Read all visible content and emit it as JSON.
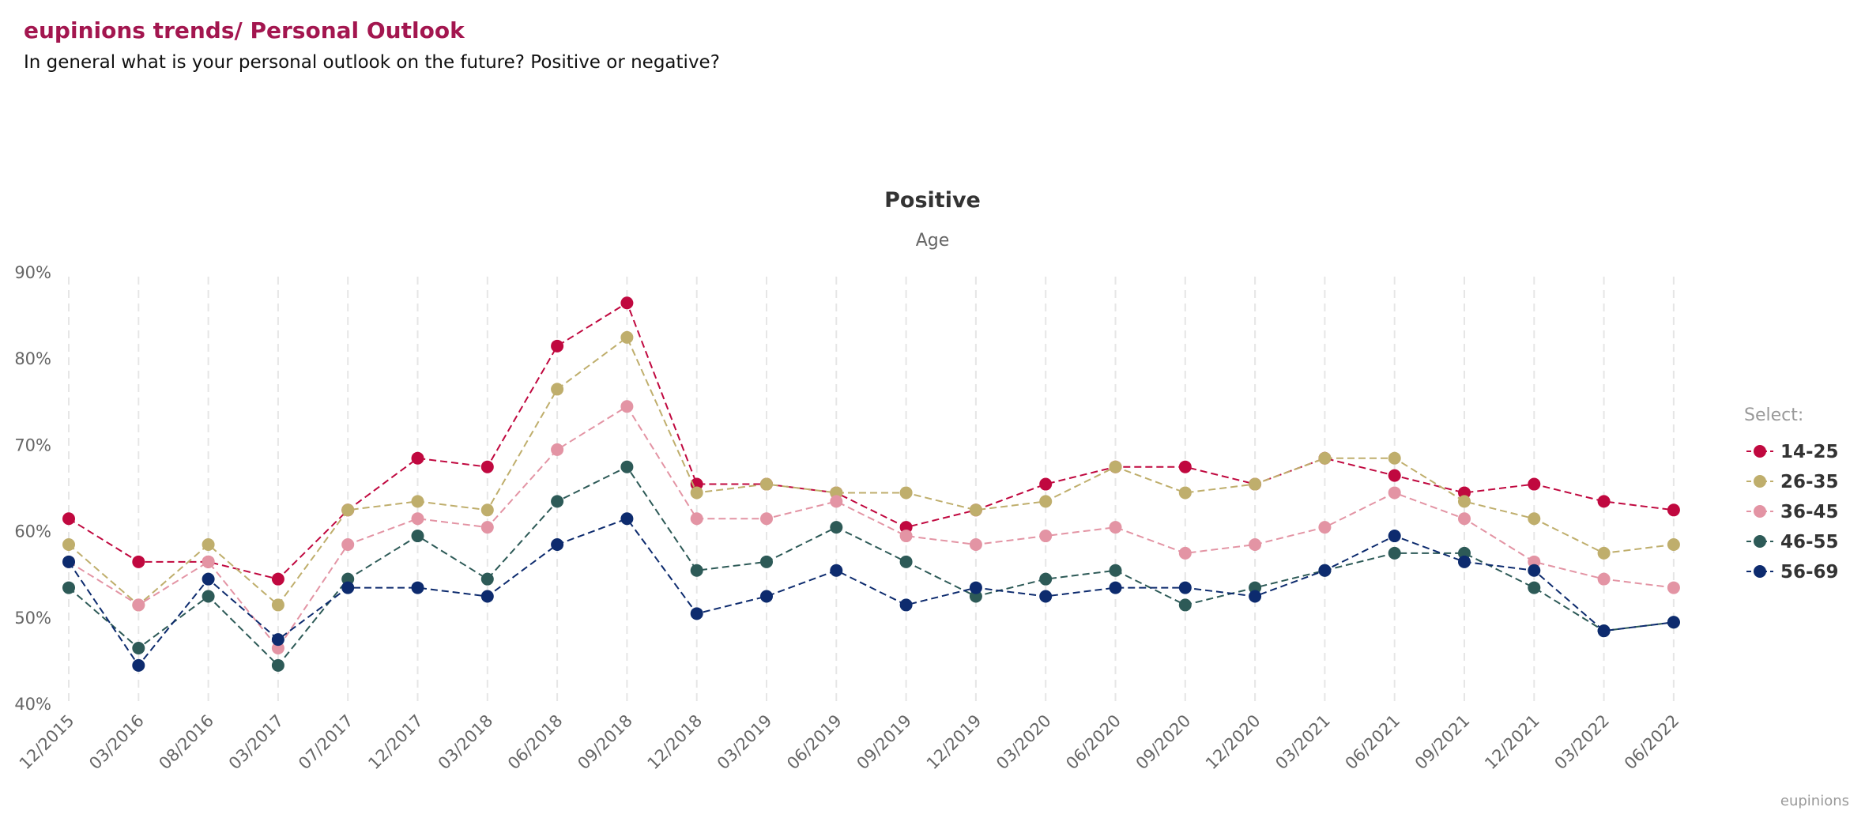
{
  "header": {
    "title": "eupinions trends/ Personal Outlook",
    "subtitle": "In general what is your personal outlook on the future? Positive or negative?"
  },
  "credit": "eupinions",
  "chart_data": {
    "type": "line",
    "title": "Positive",
    "subtitle": "Age",
    "xlabel": "",
    "ylabel": "",
    "ylim": [
      40,
      90
    ],
    "yticks": [
      "40%",
      "50%",
      "60%",
      "70%",
      "80%",
      "90%"
    ],
    "ytick_values": [
      40,
      50,
      60,
      70,
      80,
      90
    ],
    "grid": "vertical dashed",
    "legend_placement": "right",
    "legend_title": "Select:",
    "categories": [
      "12/2015",
      "03/2016",
      "08/2016",
      "03/2017",
      "07/2017",
      "12/2017",
      "03/2018",
      "06/2018",
      "09/2018",
      "12/2018",
      "03/2019",
      "06/2019",
      "09/2019",
      "12/2019",
      "03/2020",
      "06/2020",
      "09/2020",
      "12/2020",
      "03/2021",
      "06/2021",
      "09/2021",
      "12/2021",
      "03/2022",
      "06/2022"
    ],
    "series": [
      {
        "name": "14-25",
        "color": "#c0083f",
        "values": [
          61.5,
          56.5,
          56.5,
          54.5,
          62.5,
          68.5,
          67.5,
          81.5,
          86.5,
          65.5,
          65.5,
          64.5,
          60.5,
          62.5,
          65.5,
          67.5,
          67.5,
          65.5,
          68.5,
          66.5,
          64.5,
          65.5,
          63.5,
          62.5
        ]
      },
      {
        "name": "26-35",
        "color": "#bfae6c",
        "values": [
          58.5,
          51.5,
          58.5,
          51.5,
          62.5,
          63.5,
          62.5,
          76.5,
          82.5,
          64.5,
          65.5,
          64.5,
          64.5,
          62.5,
          63.5,
          67.5,
          64.5,
          65.5,
          68.5,
          68.5,
          63.5,
          61.5,
          57.5,
          58.5
        ]
      },
      {
        "name": "36-45",
        "color": "#e394a4",
        "values": [
          56.5,
          51.5,
          56.5,
          46.5,
          58.5,
          61.5,
          60.5,
          69.5,
          74.5,
          61.5,
          61.5,
          63.5,
          59.5,
          58.5,
          59.5,
          60.5,
          57.5,
          58.5,
          60.5,
          64.5,
          61.5,
          56.5,
          54.5,
          53.5
        ]
      },
      {
        "name": "46-55",
        "color": "#2d5a57",
        "values": [
          53.5,
          46.5,
          52.5,
          44.5,
          54.5,
          59.5,
          54.5,
          63.5,
          67.5,
          55.5,
          56.5,
          60.5,
          56.5,
          52.5,
          54.5,
          55.5,
          51.5,
          53.5,
          55.5,
          57.5,
          57.5,
          53.5,
          48.5,
          49.5
        ]
      },
      {
        "name": "56-69",
        "color": "#0d2b6e",
        "values": [
          56.5,
          44.5,
          54.5,
          47.5,
          53.5,
          53.5,
          52.5,
          58.5,
          61.5,
          50.5,
          52.5,
          55.5,
          51.5,
          53.5,
          52.5,
          53.5,
          53.5,
          52.5,
          55.5,
          59.5,
          56.5,
          55.5,
          48.5,
          49.5
        ]
      }
    ]
  }
}
